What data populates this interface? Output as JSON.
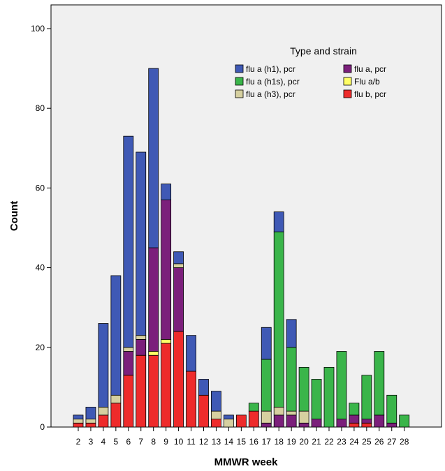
{
  "chart_data": {
    "type": "bar",
    "stacked": true,
    "xlabel": "MMWR week",
    "ylabel": "Count",
    "ylim": [
      0,
      100
    ],
    "yticks": [
      0,
      20,
      40,
      60,
      80,
      100
    ],
    "grid": false,
    "background": "#f0f0f0",
    "legend": {
      "title": "Type and strain",
      "placement": "top-right",
      "columns": [
        [
          "flu a (h1), pcr",
          "flu a (h1s), pcr",
          "flu a (h3), pcr"
        ],
        [
          "flu a, pcr",
          "Flu a/b",
          "flu b, pcr"
        ]
      ]
    },
    "categories": [
      "2",
      "3",
      "4",
      "5",
      "6",
      "7",
      "8",
      "9",
      "10",
      "11",
      "12",
      "13",
      "14",
      "15",
      "16",
      "17",
      "18",
      "19",
      "20",
      "21",
      "22",
      "23",
      "24",
      "25",
      "26",
      "27",
      "28"
    ],
    "series": [
      {
        "name": "flu b, pcr",
        "color": "#ee2b2b",
        "values": [
          1,
          1,
          3,
          6,
          13,
          18,
          18,
          21,
          24,
          14,
          8,
          2,
          0,
          3,
          4,
          0,
          0,
          0,
          0,
          0,
          0,
          0,
          1,
          1,
          0,
          0,
          0
        ]
      },
      {
        "name": "Flu a/b",
        "color": "#ffff66",
        "values": [
          0,
          0,
          0,
          0,
          0,
          0,
          1,
          1,
          0,
          0,
          0,
          0,
          0,
          0,
          0,
          0,
          0,
          0,
          0,
          0,
          0,
          0,
          0,
          0,
          0,
          0,
          0
        ]
      },
      {
        "name": "flu a, pcr",
        "color": "#7b1f7b",
        "values": [
          0,
          0,
          0,
          0,
          6,
          4,
          26,
          35,
          16,
          0,
          0,
          0,
          0,
          0,
          0,
          1,
          3,
          3,
          1,
          2,
          0,
          2,
          2,
          1,
          3,
          1,
          0
        ]
      },
      {
        "name": "flu a (h3), pcr",
        "color": "#d6d0a0",
        "values": [
          1,
          1,
          2,
          2,
          1,
          1,
          0,
          0,
          1,
          0,
          0,
          2,
          2,
          0,
          0,
          3,
          2,
          1,
          3,
          0,
          0,
          0,
          0,
          0,
          0,
          0,
          0
        ]
      },
      {
        "name": "flu a (h1s), pcr",
        "color": "#3ab54a",
        "values": [
          0,
          0,
          0,
          0,
          0,
          0,
          0,
          0,
          0,
          0,
          0,
          0,
          0,
          0,
          2,
          13,
          44,
          16,
          11,
          10,
          15,
          17,
          3,
          11,
          16,
          7,
          3
        ]
      },
      {
        "name": "flu a (h1), pcr",
        "color": "#3f59b5",
        "values": [
          1,
          3,
          21,
          30,
          53,
          46,
          45,
          4,
          3,
          9,
          4,
          5,
          1,
          0,
          0,
          8,
          5,
          7,
          0,
          0,
          0,
          0,
          0,
          0,
          0,
          0,
          0
        ]
      }
    ]
  }
}
